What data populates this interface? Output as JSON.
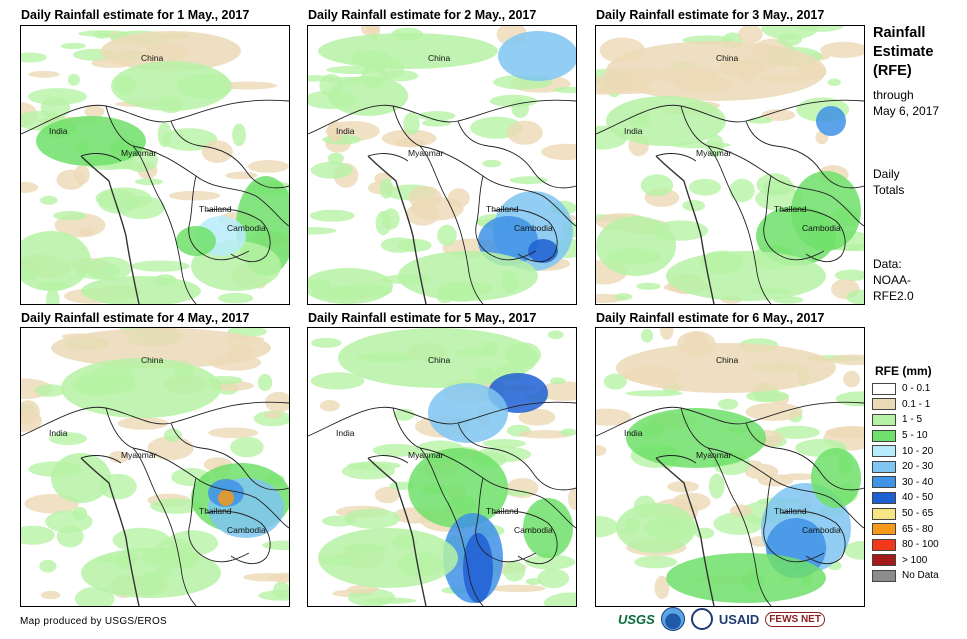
{
  "panels": [
    {
      "title": "Daily Rainfall estimate for 1 May., 2017",
      "date": "1 May 2017"
    },
    {
      "title": "Daily Rainfall estimate for 2 May., 2017",
      "date": "2 May 2017"
    },
    {
      "title": "Daily Rainfall estimate for 3 May., 2017",
      "date": "3 May 2017"
    },
    {
      "title": "Daily Rainfall estimate for 4 May., 2017",
      "date": "4 May 2017"
    },
    {
      "title": "Daily Rainfall estimate for 5 May., 2017",
      "date": "5 May 2017"
    },
    {
      "title": "Daily Rainfall estimate for 6 May., 2017",
      "date": "6 May 2017"
    }
  ],
  "map_labels": {
    "china": "China",
    "india": "India",
    "myanmar": "Myanmar",
    "thailand": "Thailand",
    "cambodia": "Cambodia"
  },
  "side": {
    "title_line1": "Rainfall",
    "title_line2": "Estimate",
    "title_line3": "(RFE)",
    "through_line1": "through",
    "through_line2": "May 6, 2017",
    "totals_line1": "Daily",
    "totals_line2": "Totals",
    "data_line1": "Data:",
    "data_line2": "NOAA-",
    "data_line3": "RFE2.0"
  },
  "legend": {
    "title": "RFE (mm)",
    "items": [
      {
        "label": "0 - 0.1",
        "color": "#ffffff"
      },
      {
        "label": "0.1 - 1",
        "color": "#ecd9b7"
      },
      {
        "label": "1 - 5",
        "color": "#b6f2a5"
      },
      {
        "label": "5 - 10",
        "color": "#6fe06a"
      },
      {
        "label": "10 - 20",
        "color": "#b7ecfa"
      },
      {
        "label": "20 - 30",
        "color": "#7fc6f2"
      },
      {
        "label": "30 - 40",
        "color": "#3f92e6"
      },
      {
        "label": "40 - 50",
        "color": "#1f5fd4"
      },
      {
        "label": "50 - 65",
        "color": "#f7e584"
      },
      {
        "label": "65 - 80",
        "color": "#f59a1a"
      },
      {
        "label": "80 - 100",
        "color": "#f2381a"
      },
      {
        "label": "> 100",
        "color": "#a21a1a"
      },
      {
        "label": "No Data",
        "color": "#8c8c8c"
      }
    ]
  },
  "footer": {
    "credit": "Map produced by USGS/EROS",
    "usgs": "USGS",
    "usaid": "USAID",
    "fewsnet": "FEWS NET"
  }
}
